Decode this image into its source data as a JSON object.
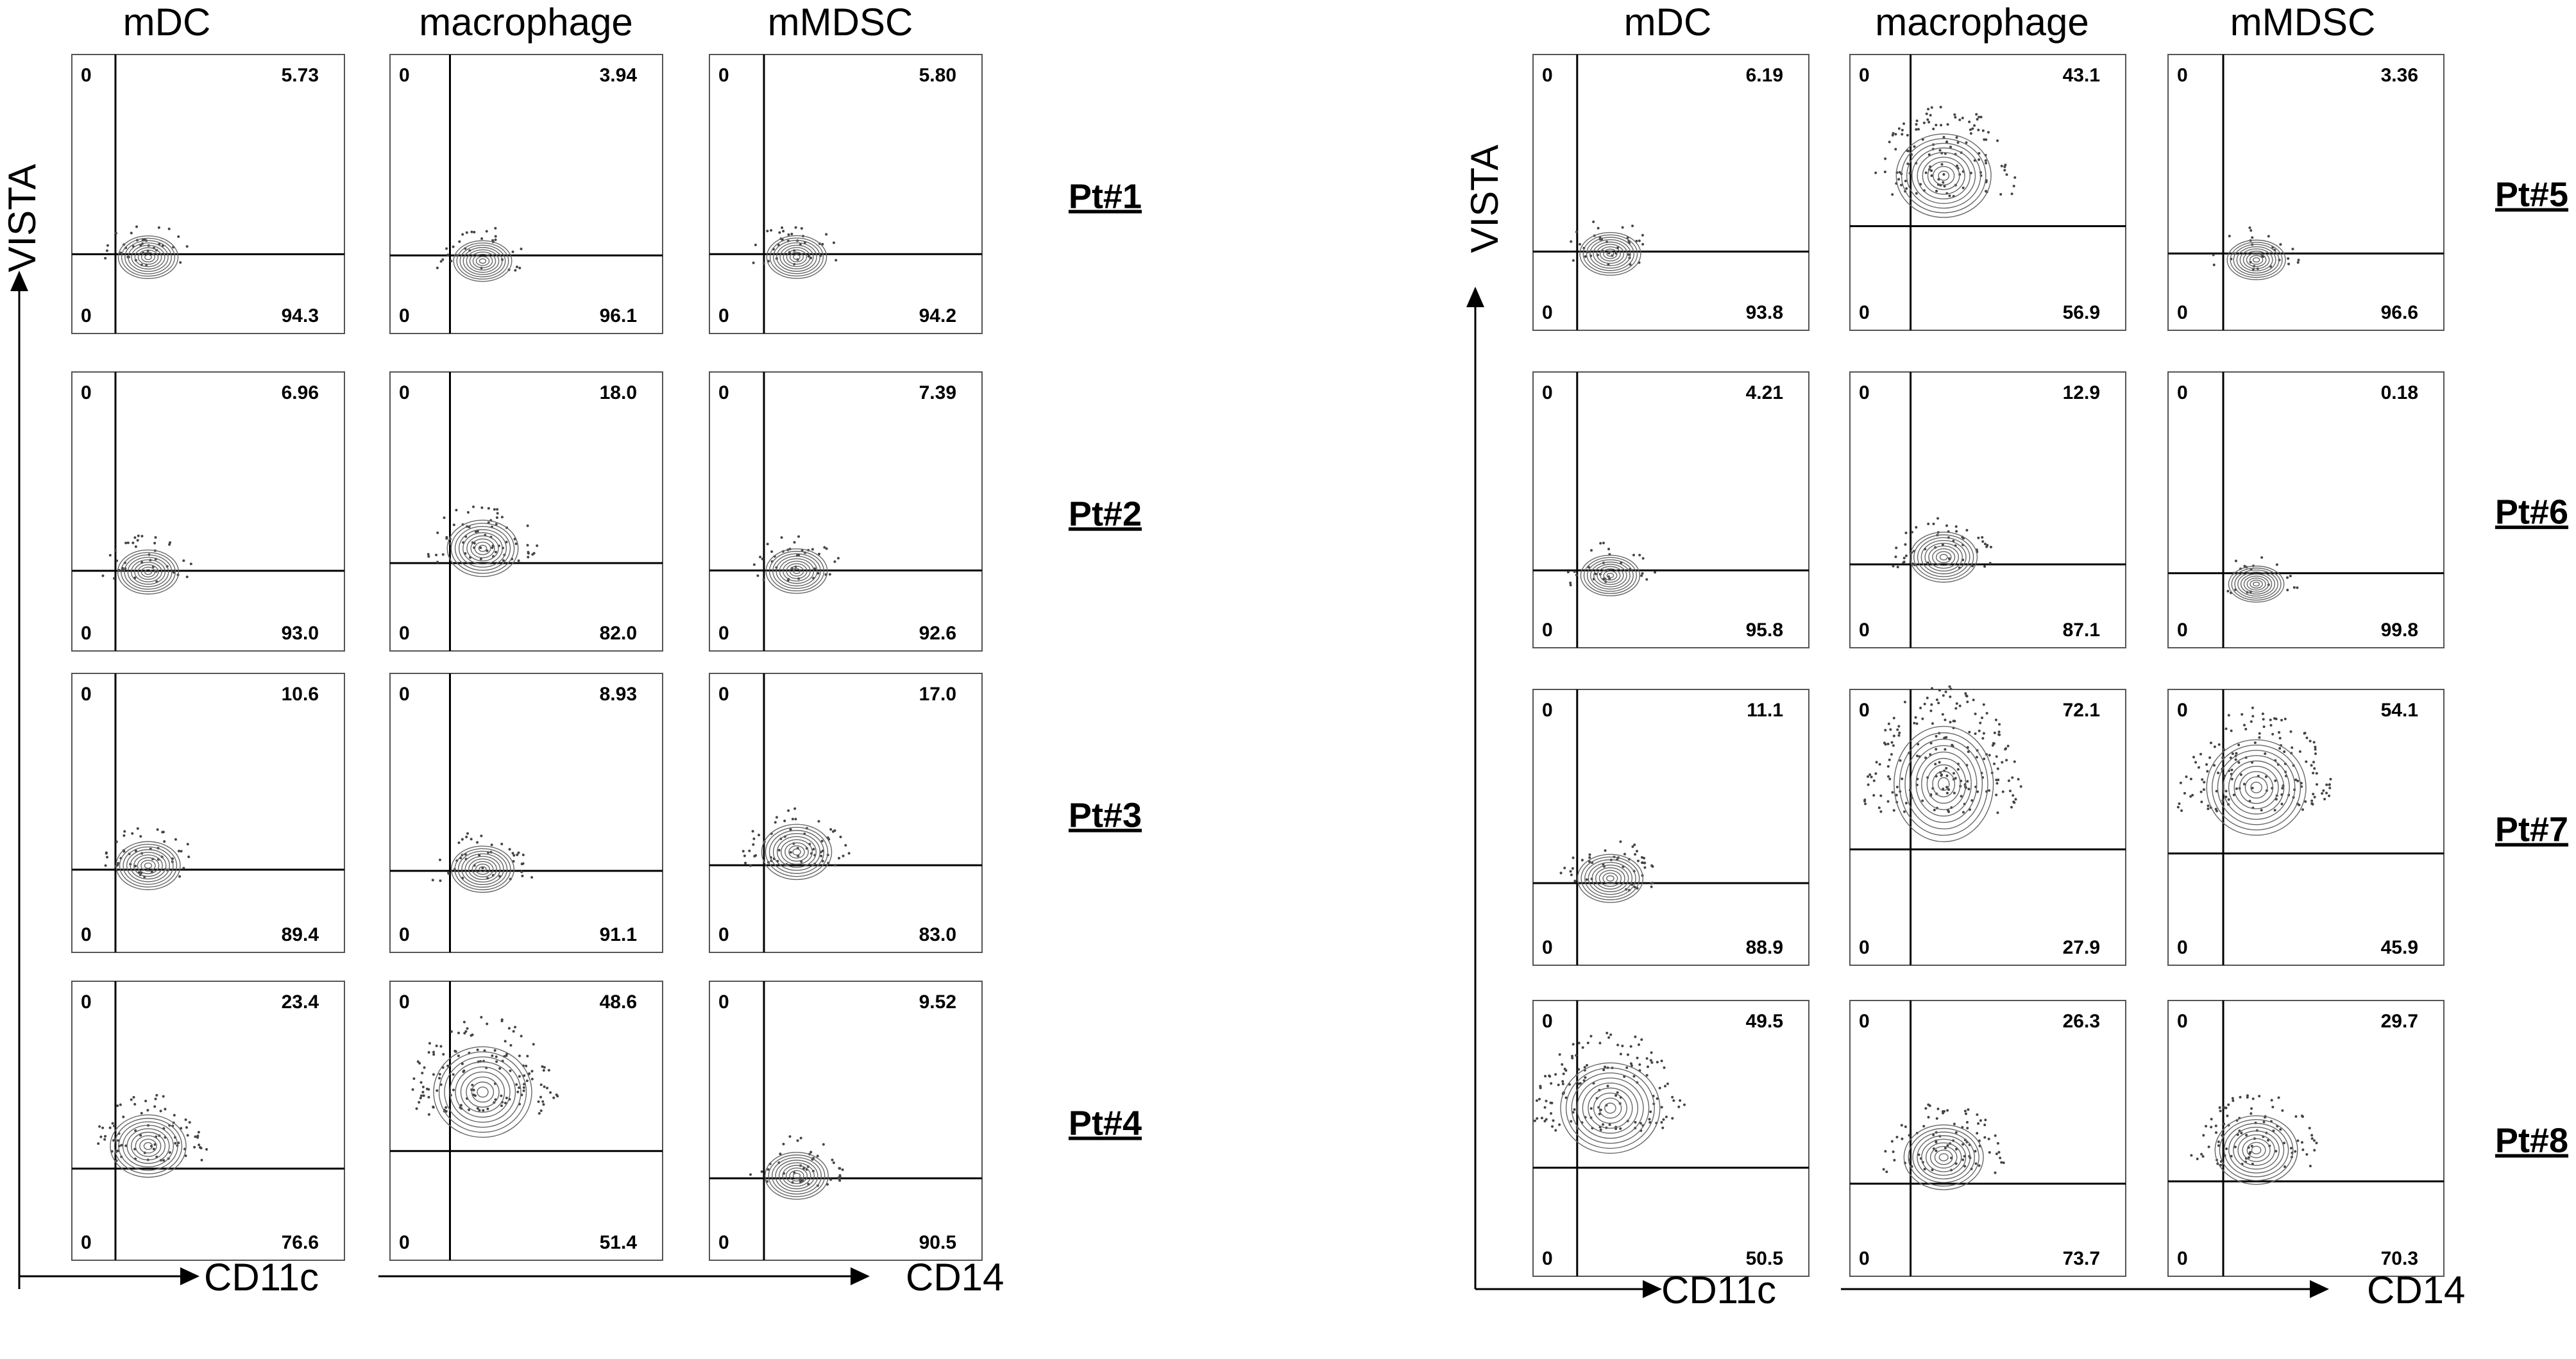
{
  "chart_data": {
    "type": "scatter",
    "column_headers": [
      "mDC",
      "macrophage",
      "mMDSC"
    ],
    "x_axis_labels": [
      "CD11c",
      "CD14"
    ],
    "y_axis_label": "VISTA",
    "panels_groups": [
      {
        "patients": [
          {
            "label": "Pt#1",
            "cells": [
              {
                "population": "mDC",
                "upper_left": "0",
                "upper_right": "5.73",
                "lower_left": "0",
                "lower_right": "94.3"
              },
              {
                "population": "macrophage",
                "upper_left": "0",
                "upper_right": "3.94",
                "lower_left": "0",
                "lower_right": "96.1"
              },
              {
                "population": "mMDSC",
                "upper_left": "0",
                "upper_right": "5.80",
                "lower_left": "0",
                "lower_right": "94.2"
              }
            ]
          },
          {
            "label": "Pt#2",
            "cells": [
              {
                "population": "mDC",
                "upper_left": "0",
                "upper_right": "6.96",
                "lower_left": "0",
                "lower_right": "93.0"
              },
              {
                "population": "macrophage",
                "upper_left": "0",
                "upper_right": "18.0",
                "lower_left": "0",
                "lower_right": "82.0"
              },
              {
                "population": "mMDSC",
                "upper_left": "0",
                "upper_right": "7.39",
                "lower_left": "0",
                "lower_right": "92.6"
              }
            ]
          },
          {
            "label": "Pt#3",
            "cells": [
              {
                "population": "mDC",
                "upper_left": "0",
                "upper_right": "10.6",
                "lower_left": "0",
                "lower_right": "89.4"
              },
              {
                "population": "macrophage",
                "upper_left": "0",
                "upper_right": "8.93",
                "lower_left": "0",
                "lower_right": "91.1"
              },
              {
                "population": "mMDSC",
                "upper_left": "0",
                "upper_right": "17.0",
                "lower_left": "0",
                "lower_right": "83.0"
              }
            ]
          },
          {
            "label": "Pt#4",
            "cells": [
              {
                "population": "mDC",
                "upper_left": "0",
                "upper_right": "23.4",
                "lower_left": "0",
                "lower_right": "76.6"
              },
              {
                "population": "macrophage",
                "upper_left": "0",
                "upper_right": "48.6",
                "lower_left": "0",
                "lower_right": "51.4"
              },
              {
                "population": "mMDSC",
                "upper_left": "0",
                "upper_right": "9.52",
                "lower_left": "0",
                "lower_right": "90.5"
              }
            ]
          }
        ]
      },
      {
        "patients": [
          {
            "label": "Pt#5",
            "cells": [
              {
                "population": "mDC",
                "upper_left": "0",
                "upper_right": "6.19",
                "lower_left": "0",
                "lower_right": "93.8"
              },
              {
                "population": "macrophage",
                "upper_left": "0",
                "upper_right": "43.1",
                "lower_left": "0",
                "lower_right": "56.9"
              },
              {
                "population": "mMDSC",
                "upper_left": "0",
                "upper_right": "3.36",
                "lower_left": "0",
                "lower_right": "96.6"
              }
            ]
          },
          {
            "label": "Pt#6",
            "cells": [
              {
                "population": "mDC",
                "upper_left": "0",
                "upper_right": "4.21",
                "lower_left": "0",
                "lower_right": "95.8"
              },
              {
                "population": "macrophage",
                "upper_left": "0",
                "upper_right": "12.9",
                "lower_left": "0",
                "lower_right": "87.1"
              },
              {
                "population": "mMDSC",
                "upper_left": "0",
                "upper_right": "0.18",
                "lower_left": "0",
                "lower_right": "99.8"
              }
            ]
          },
          {
            "label": "Pt#7",
            "cells": [
              {
                "population": "mDC",
                "upper_left": "0",
                "upper_right": "11.1",
                "lower_left": "0",
                "lower_right": "88.9"
              },
              {
                "population": "macrophage",
                "upper_left": "0",
                "upper_right": "72.1",
                "lower_left": "0",
                "lower_right": "27.9"
              },
              {
                "population": "mMDSC",
                "upper_left": "0",
                "upper_right": "54.1",
                "lower_left": "0",
                "lower_right": "45.9"
              }
            ]
          },
          {
            "label": "Pt#8",
            "cells": [
              {
                "population": "mDC",
                "upper_left": "0",
                "upper_right": "49.5",
                "lower_left": "0",
                "lower_right": "50.5"
              },
              {
                "population": "macrophage",
                "upper_left": "0",
                "upper_right": "26.3",
                "lower_left": "0",
                "lower_right": "73.7"
              },
              {
                "population": "mMDSC",
                "upper_left": "0",
                "upper_right": "29.7",
                "lower_left": "0",
                "lower_right": "70.3"
              }
            ]
          }
        ]
      }
    ]
  }
}
